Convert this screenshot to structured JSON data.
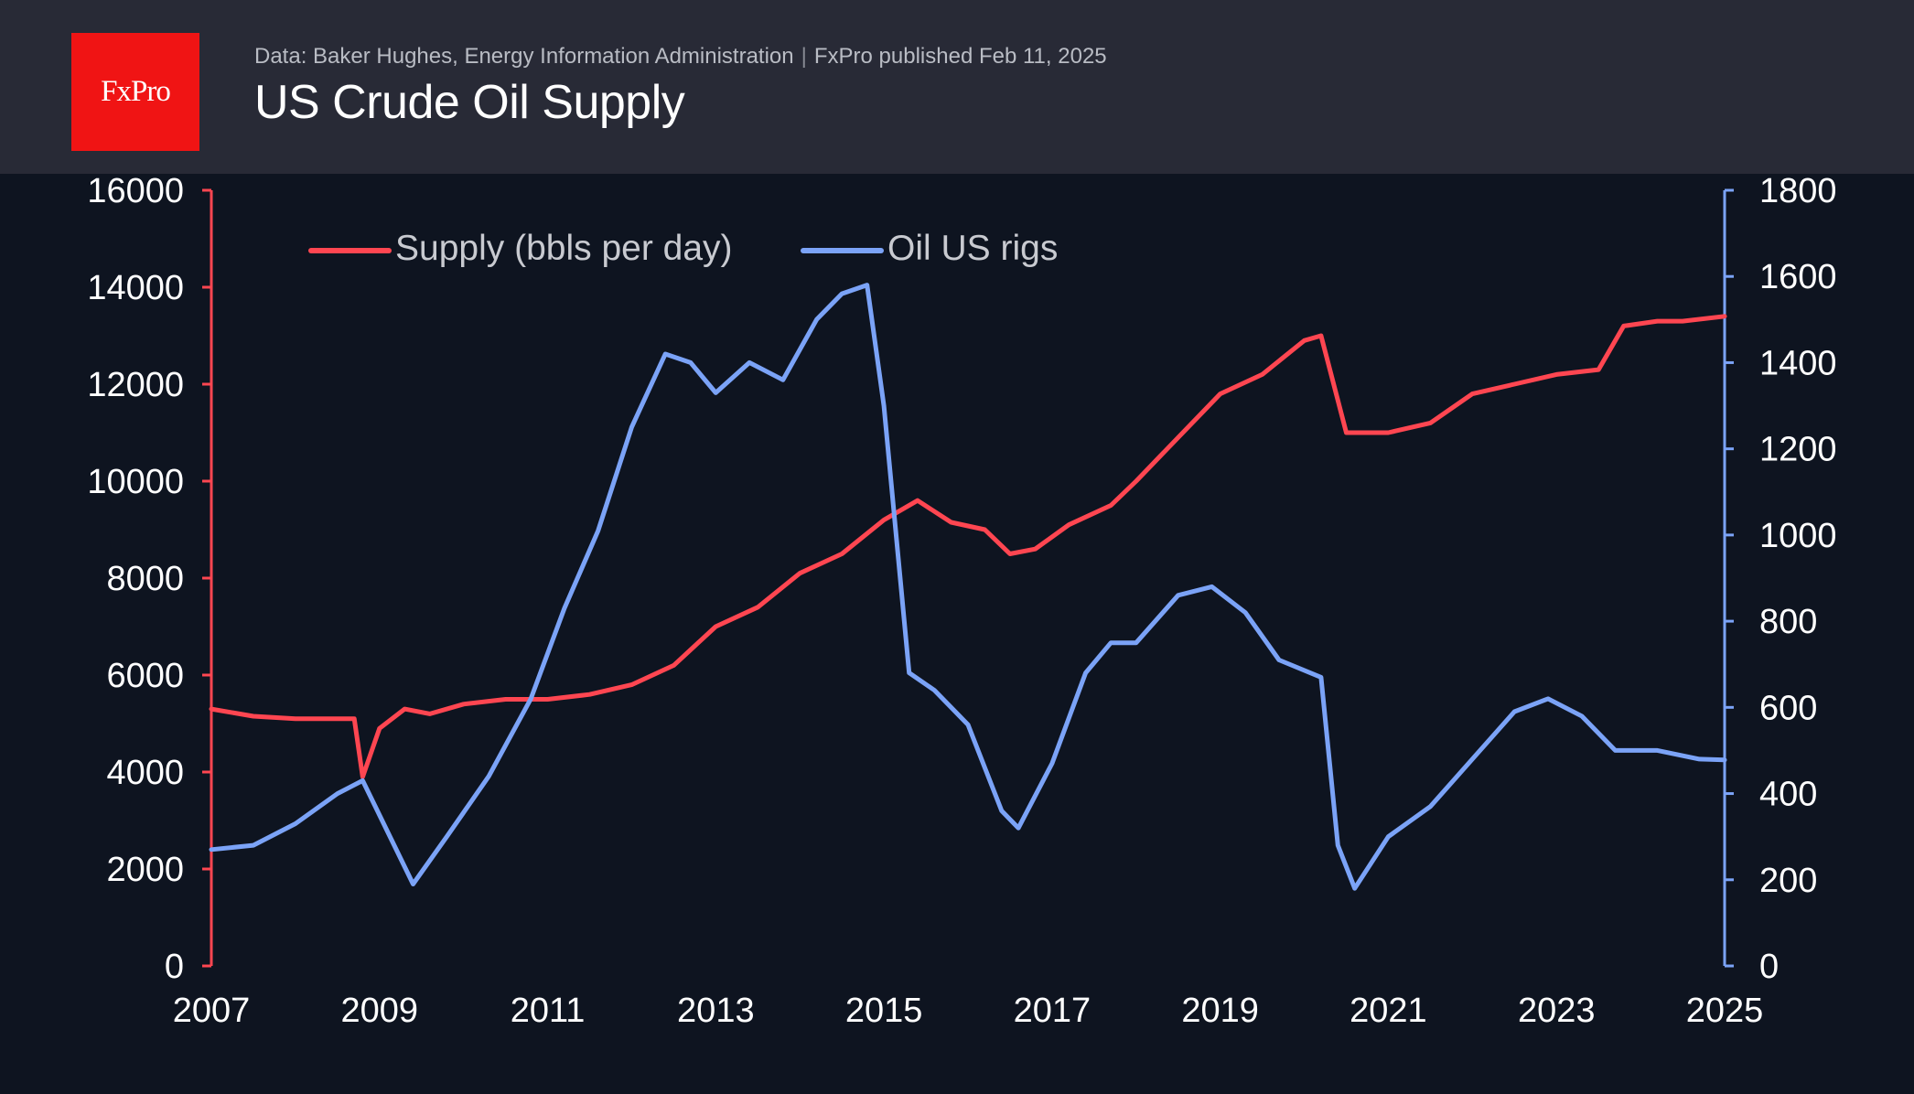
{
  "header": {
    "logo_text": "FxPro",
    "source": "Data: Baker Hughes, Energy Information Administration",
    "separator": "|",
    "published": "FxPro published Feb 11, 2025",
    "title": "US Crude Oil Supply"
  },
  "colors": {
    "supply": "#ff4651",
    "rigs": "#7ba3f7",
    "background": "#0e1420",
    "header_bg": "#282a36",
    "logo_bg": "#f01414"
  },
  "chart_data": {
    "type": "line",
    "title": "US Crude Oil Supply",
    "legend_position": "top-left",
    "grid": false,
    "x_ticks": [
      "2007",
      "2009",
      "2011",
      "2013",
      "2015",
      "2017",
      "2019",
      "2021",
      "2023",
      "2025"
    ],
    "xlim": [
      2007,
      2025
    ],
    "y_left": {
      "label": "Supply (bbls per day)",
      "ylim": [
        0,
        16000
      ],
      "ticks": [
        "0",
        "2000",
        "4000",
        "6000",
        "8000",
        "10000",
        "12000",
        "14000",
        "16000"
      ]
    },
    "y_right": {
      "label": "Oil US rigs",
      "ylim": [
        0,
        1800
      ],
      "ticks": [
        "0",
        "200",
        "400",
        "600",
        "800",
        "1000",
        "1200",
        "1400",
        "1600",
        "1800"
      ]
    },
    "series": [
      {
        "name": "Supply (bbls per day)",
        "axis": "left",
        "x": [
          2007.0,
          2007.5,
          2008.0,
          2008.5,
          2008.7,
          2008.8,
          2009.0,
          2009.3,
          2009.6,
          2010.0,
          2010.5,
          2011.0,
          2011.5,
          2012.0,
          2012.5,
          2013.0,
          2013.5,
          2014.0,
          2014.5,
          2015.0,
          2015.4,
          2015.8,
          2016.2,
          2016.5,
          2016.8,
          2017.2,
          2017.7,
          2018.0,
          2018.5,
          2019.0,
          2019.5,
          2020.0,
          2020.2,
          2020.5,
          2021.0,
          2021.5,
          2022.0,
          2022.5,
          2023.0,
          2023.5,
          2023.8,
          2024.2,
          2024.5,
          2025.0
        ],
        "values": [
          5300,
          5150,
          5100,
          5100,
          5100,
          3900,
          4900,
          5300,
          5200,
          5400,
          5500,
          5500,
          5600,
          5800,
          6200,
          7000,
          7400,
          8100,
          8500,
          9200,
          9600,
          9150,
          9000,
          8500,
          8600,
          9100,
          9500,
          10000,
          10900,
          11800,
          12200,
          12900,
          13000,
          11000,
          11000,
          11200,
          11800,
          12000,
          12200,
          12300,
          13200,
          13300,
          13300,
          13400
        ]
      },
      {
        "name": "Oil US rigs",
        "axis": "right",
        "x": [
          2007.0,
          2007.5,
          2008.0,
          2008.5,
          2008.8,
          2009.0,
          2009.4,
          2009.8,
          2010.3,
          2010.8,
          2011.2,
          2011.6,
          2012.0,
          2012.4,
          2012.7,
          2013.0,
          2013.4,
          2013.8,
          2014.2,
          2014.5,
          2014.8,
          2015.0,
          2015.3,
          2015.6,
          2016.0,
          2016.4,
          2016.6,
          2017.0,
          2017.4,
          2017.7,
          2018.0,
          2018.5,
          2018.9,
          2019.3,
          2019.7,
          2020.2,
          2020.4,
          2020.6,
          2021.0,
          2021.5,
          2022.0,
          2022.5,
          2022.9,
          2023.3,
          2023.7,
          2024.2,
          2024.7,
          2025.0
        ],
        "values": [
          270,
          280,
          330,
          400,
          430,
          350,
          190,
          300,
          440,
          620,
          830,
          1010,
          1250,
          1420,
          1400,
          1330,
          1400,
          1360,
          1500,
          1560,
          1580,
          1300,
          680,
          640,
          560,
          360,
          320,
          470,
          680,
          750,
          750,
          860,
          880,
          820,
          710,
          670,
          280,
          180,
          300,
          370,
          480,
          590,
          620,
          580,
          500,
          500,
          480,
          478
        ]
      }
    ]
  }
}
